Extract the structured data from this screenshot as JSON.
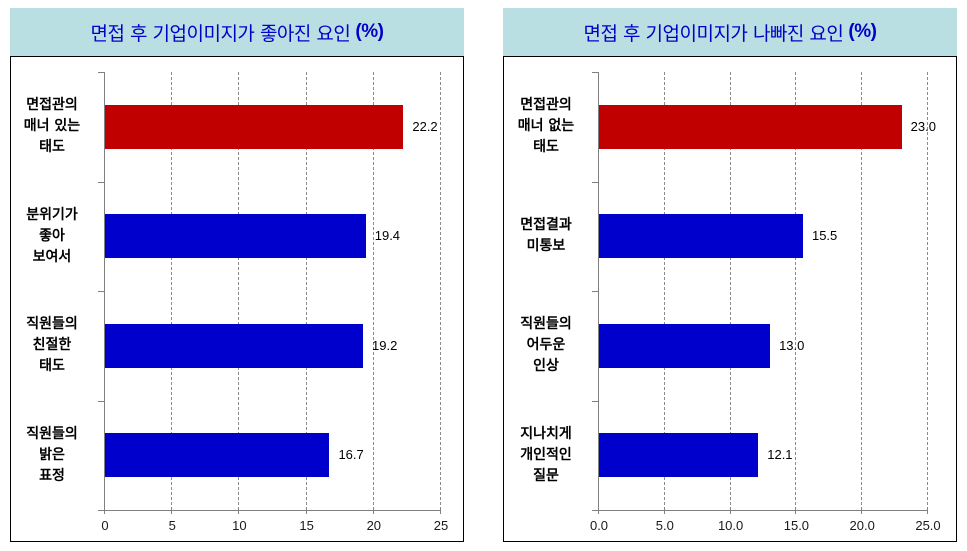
{
  "colors": {
    "highlight": "#c00000",
    "bar": "#0000cc",
    "title_text": "#0000c8",
    "title_bg": "#b9dfe3"
  },
  "left": {
    "title": "면접 후 기업이미지가 좋아진 요인",
    "title_unit": "(%)",
    "ticks": [
      "0",
      "5",
      "10",
      "15",
      "20",
      "25"
    ],
    "bars": [
      {
        "label": "면접관의\n매너 있는\n태도",
        "value": "22.2"
      },
      {
        "label": "분위기가\n좋아\n보여서",
        "value": "19.4"
      },
      {
        "label": "직원들의\n친절한\n태도",
        "value": "19.2"
      },
      {
        "label": "직원들의\n밝은\n표정",
        "value": "16.7"
      }
    ]
  },
  "right": {
    "title": "면접 후 기업이미지가 나빠진 요인",
    "title_unit": "(%)",
    "ticks": [
      "0.0",
      "5.0",
      "10.0",
      "15.0",
      "20.0",
      "25.0"
    ],
    "bars": [
      {
        "label": "면접관의\n매너 없는\n태도",
        "value": "23.0"
      },
      {
        "label": "면접결과\n미통보",
        "value": "15.5"
      },
      {
        "label": "직원들의\n어두운\n인상",
        "value": "13.0"
      },
      {
        "label": "지나치게\n개인적인\n질문",
        "value": "12.1"
      }
    ]
  },
  "chart_data": [
    {
      "type": "bar",
      "orientation": "horizontal",
      "title": "면접 후 기업이미지가 좋아진 요인 (%)",
      "categories": [
        "면접관의 매너 있는 태도",
        "분위기가 좋아 보여서",
        "직원들의 친절한 태도",
        "직원들의 밝은 표정"
      ],
      "values": [
        22.2,
        19.4,
        19.2,
        16.7
      ],
      "xlabel": "",
      "ylabel": "",
      "xlim": [
        0,
        25
      ],
      "ticks": [
        0,
        5,
        10,
        15,
        20,
        25
      ],
      "grid": "vertical dashed",
      "legend": "none",
      "bar_colors": [
        "#c00000",
        "#0000cc",
        "#0000cc",
        "#0000cc"
      ]
    },
    {
      "type": "bar",
      "orientation": "horizontal",
      "title": "면접 후 기업이미지가 나빠진 요인 (%)",
      "categories": [
        "면접관의 매너 없는 태도",
        "면접결과 미통보",
        "직원들의 어두운 인상",
        "지나치게 개인적인 질문"
      ],
      "values": [
        23.0,
        15.5,
        13.0,
        12.1
      ],
      "xlabel": "",
      "ylabel": "",
      "xlim": [
        0,
        25
      ],
      "ticks": [
        0.0,
        5.0,
        10.0,
        15.0,
        20.0,
        25.0
      ],
      "grid": "vertical dashed",
      "legend": "none",
      "bar_colors": [
        "#c00000",
        "#0000cc",
        "#0000cc",
        "#0000cc"
      ]
    }
  ]
}
